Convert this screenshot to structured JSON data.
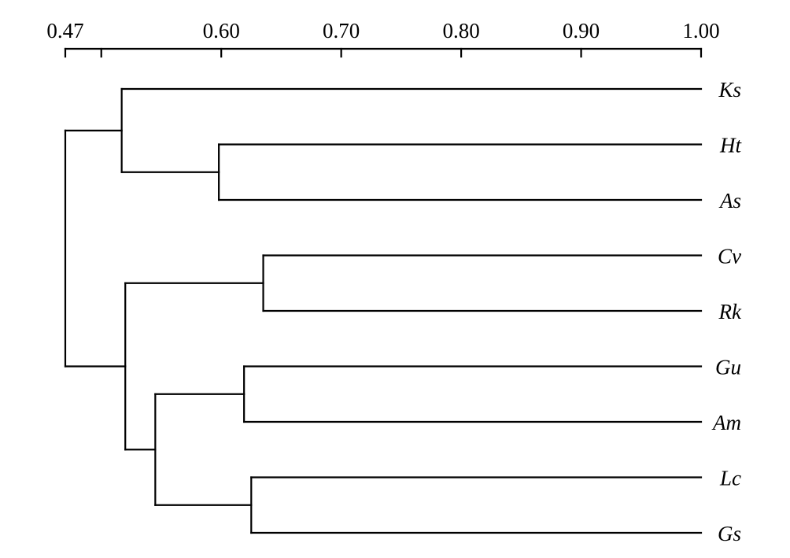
{
  "chart_data": {
    "type": "dendrogram",
    "axis": {
      "range": [
        0.47,
        1.0
      ],
      "ticks": [
        {
          "value": 0.47,
          "label": "0.47"
        },
        {
          "value": 0.5,
          "label": ""
        },
        {
          "value": 0.6,
          "label": "0.60"
        },
        {
          "value": 0.7,
          "label": "0.70"
        },
        {
          "value": 0.8,
          "label": "0.80"
        },
        {
          "value": 0.9,
          "label": "0.90"
        },
        {
          "value": 1.0,
          "label": "1.00"
        }
      ]
    },
    "leaves": [
      "Ks",
      "Ht",
      "As",
      "Cv",
      "Rk",
      "Gu",
      "Am",
      "Lc",
      "Gs"
    ],
    "merges": [
      {
        "children": [
          "Ht",
          "As"
        ],
        "similarity": 0.598
      },
      {
        "children": [
          "Ks",
          "Ht+As"
        ],
        "similarity": 0.517
      },
      {
        "children": [
          "Cv",
          "Rk"
        ],
        "similarity": 0.635
      },
      {
        "children": [
          "Gu",
          "Am"
        ],
        "similarity": 0.619
      },
      {
        "children": [
          "Lc",
          "Gs"
        ],
        "similarity": 0.625
      },
      {
        "children": [
          "Gu+Am",
          "Lc+Gs"
        ],
        "similarity": 0.545
      },
      {
        "children": [
          "Cv+Rk",
          "Gu+Am+Lc+Gs"
        ],
        "similarity": 0.52
      },
      {
        "children": [
          "Ks+Ht+As",
          "Cv+Rk+Gu+Am+Lc+Gs"
        ],
        "similarity": 0.47
      }
    ]
  }
}
